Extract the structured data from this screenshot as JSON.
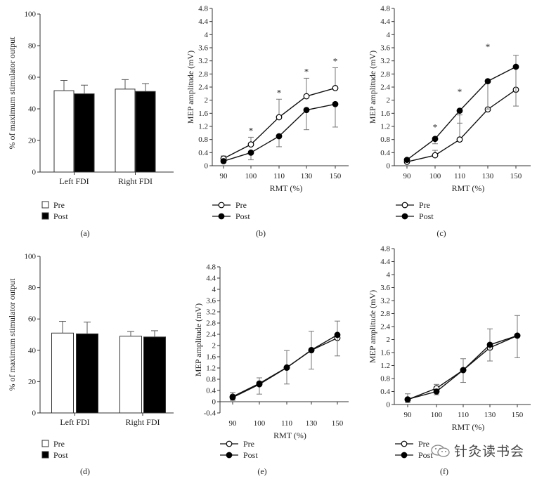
{
  "chart_data": [
    {
      "panel": "(a)",
      "type": "bar",
      "ylabel": "% of maximum stimulator output",
      "ylim": [
        0,
        100
      ],
      "yticks": [
        0,
        20,
        40,
        60,
        80,
        100
      ],
      "categories": [
        "Left FDI",
        "Right FDI"
      ],
      "series": [
        {
          "name": "Pre",
          "values": [
            51.5,
            52.5
          ],
          "errors": [
            6.5,
            6.0
          ],
          "color": "#ffffff"
        },
        {
          "name": "Post",
          "values": [
            49.5,
            51.0
          ],
          "errors": [
            5.5,
            5.0
          ],
          "color": "#000000"
        }
      ],
      "legend": {
        "position": "bottom-left",
        "items": [
          "Pre",
          "Post"
        ]
      }
    },
    {
      "panel": "(b)",
      "type": "line",
      "xlabel": "RMT (%)",
      "ylabel": "MEP amplitude (mV)",
      "x": [
        90,
        100,
        110,
        130,
        150
      ],
      "ylim": [
        0,
        4.8
      ],
      "yticks": [
        "0",
        "0.4",
        "0.8",
        "1.2",
        "1.6",
        "2",
        "2.4",
        "2.8",
        "3.2",
        "3.6",
        "4",
        "4.4",
        "4.8"
      ],
      "series": [
        {
          "name": "Pre",
          "marker": "open",
          "values": [
            0.22,
            0.65,
            1.48,
            2.12,
            2.37
          ],
          "errors": [
            0.08,
            0.22,
            0.55,
            0.55,
            0.62
          ]
        },
        {
          "name": "Post",
          "marker": "filled",
          "values": [
            0.14,
            0.4,
            0.9,
            1.7,
            1.88
          ],
          "errors": [
            0.05,
            0.22,
            0.32,
            0.6,
            0.7
          ]
        }
      ],
      "annotations": [
        {
          "x": 100,
          "text": "*"
        },
        {
          "x": 110,
          "text": "*"
        },
        {
          "x": 130,
          "text": "*"
        },
        {
          "x": 150,
          "text": "*"
        }
      ],
      "legend": {
        "position": "bottom-left",
        "items": [
          "Pre",
          "Post"
        ]
      }
    },
    {
      "panel": "(c)",
      "type": "line",
      "xlabel": "RMT (%)",
      "ylabel": "MEP amplitude (mV)",
      "x": [
        90,
        100,
        110,
        130,
        150
      ],
      "ylim": [
        0,
        4.8
      ],
      "yticks": [
        "0",
        "0.4",
        "0.8",
        "1.2",
        "1.6",
        "2",
        "2.4",
        "2.8",
        "3.2",
        "3.6",
        "4",
        "4.4",
        "4.8"
      ],
      "series": [
        {
          "name": "Pre",
          "marker": "open",
          "values": [
            0.12,
            0.32,
            0.8,
            1.72,
            2.32
          ],
          "errors": [
            0.05,
            0.15,
            0.75,
            0.9,
            1.05
          ]
        },
        {
          "name": "Post",
          "marker": "filled",
          "values": [
            0.18,
            0.82,
            1.68,
            2.58,
            3.02
          ],
          "errors": [
            0.05,
            0.15,
            0.38,
            0.85,
            1.2
          ]
        }
      ],
      "annotations": [
        {
          "x": 100,
          "text": "*"
        },
        {
          "x": 110,
          "text": "*"
        },
        {
          "x": 130,
          "text": "*"
        }
      ],
      "legend": {
        "position": "bottom-left",
        "items": [
          "Pre",
          "Post"
        ]
      }
    },
    {
      "panel": "(d)",
      "type": "bar",
      "ylabel": "% of maximum stimulator output",
      "ylim": [
        0,
        100
      ],
      "yticks": [
        0,
        20,
        40,
        60,
        80,
        100
      ],
      "categories": [
        "Left FDI",
        "Right FDI"
      ],
      "series": [
        {
          "name": "Pre",
          "values": [
            51.0,
            49.0
          ],
          "errors": [
            7.5,
            3.0
          ],
          "color": "#ffffff"
        },
        {
          "name": "Post",
          "values": [
            50.5,
            48.5
          ],
          "errors": [
            7.5,
            4.0
          ],
          "color": "#000000"
        }
      ],
      "legend": {
        "position": "bottom-left",
        "items": [
          "Pre",
          "Post"
        ]
      }
    },
    {
      "panel": "(e)",
      "type": "line",
      "xlabel": "RMT (%)",
      "ylabel": "MEP amplitude (mV)",
      "x": [
        90,
        100,
        110,
        130,
        150
      ],
      "ylim": [
        -0.4,
        4.8
      ],
      "yticks": [
        "-0.4",
        "0",
        "0.4",
        "0.8",
        "1.2",
        "1.6",
        "2",
        "2.4",
        "2.8",
        "3.2",
        "3.6",
        "4",
        "4.4",
        "4.8"
      ],
      "series": [
        {
          "name": "Pre",
          "marker": "open",
          "values": [
            0.18,
            0.65,
            1.22,
            1.83,
            2.27
          ],
          "errors": [
            0.15,
            0.2,
            0.6,
            0.68,
            0.6
          ]
        },
        {
          "name": "Post",
          "marker": "filled",
          "values": [
            0.15,
            0.62,
            1.21,
            1.84,
            2.38
          ],
          "errors": [
            0.1,
            0.35,
            0.58,
            0.68,
            0.75
          ]
        }
      ],
      "annotations": [],
      "legend": {
        "position": "bottom-left",
        "items": [
          "Pre",
          "Post"
        ]
      }
    },
    {
      "panel": "(f)",
      "type": "line",
      "xlabel": "RMT (%)",
      "ylabel": "MEP amplitude (mV)",
      "x": [
        90,
        100,
        110,
        130,
        150
      ],
      "ylim": [
        0,
        4.8
      ],
      "yticks": [
        "0",
        "0.4",
        "0.8",
        "1.2",
        "1.6",
        "2",
        "2.4",
        "2.8",
        "3.2",
        "3.6",
        "4",
        "4.4",
        "4.8"
      ],
      "series": [
        {
          "name": "Pre",
          "marker": "open",
          "values": [
            0.15,
            0.5,
            1.06,
            1.75,
            2.12
          ],
          "errors": [
            0.18,
            0.12,
            0.35,
            0.58,
            0.62
          ]
        },
        {
          "name": "Post",
          "marker": "filled",
          "values": [
            0.16,
            0.4,
            1.06,
            1.84,
            2.12
          ],
          "errors": [
            0.1,
            0.1,
            0.38,
            0.5,
            0.68
          ]
        }
      ],
      "annotations": [],
      "legend": {
        "position": "bottom-left",
        "items": [
          "Pre",
          "Post"
        ]
      }
    }
  ],
  "watermark": {
    "text": "针灸读书会",
    "icon": "wechat-icon"
  }
}
